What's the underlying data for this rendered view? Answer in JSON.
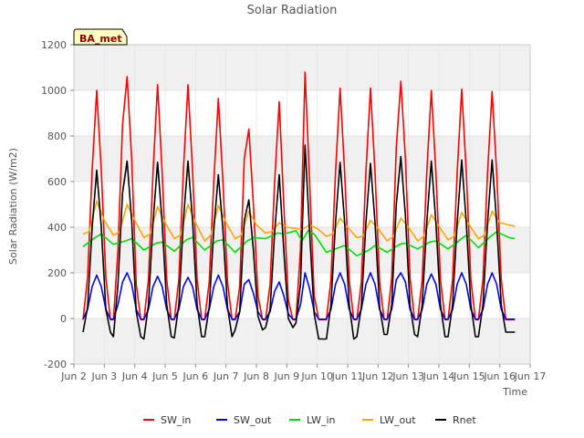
{
  "chart_data": {
    "type": "line",
    "title": "Solar Radiation",
    "xlabel": "Time",
    "ylabel": "Solar Radiation (W/m2)",
    "site_label": "BA_met",
    "xlim": [
      2,
      17
    ],
    "ylim": [
      -200,
      1200
    ],
    "x_ticks": [
      {
        "v": 2,
        "label": "Jun 2"
      },
      {
        "v": 3,
        "label": "Jun 3"
      },
      {
        "v": 4,
        "label": "Jun 4"
      },
      {
        "v": 5,
        "label": "Jun 5"
      },
      {
        "v": 6,
        "label": "Jun 6"
      },
      {
        "v": 7,
        "label": "Jun 7"
      },
      {
        "v": 8,
        "label": "Jun 8"
      },
      {
        "v": 9,
        "label": "Jun 9"
      },
      {
        "v": 10,
        "label": "Jun 10"
      },
      {
        "v": 11,
        "label": "Jun 11"
      },
      {
        "v": 12,
        "label": "Jun 12"
      },
      {
        "v": 13,
        "label": "Jun 13"
      },
      {
        "v": 14,
        "label": "Jun 14"
      },
      {
        "v": 15,
        "label": "Jun 15"
      },
      {
        "v": 16,
        "label": "Jun 16"
      },
      {
        "v": 17,
        "label": "Jun 17"
      }
    ],
    "y_ticks": [
      -200,
      0,
      200,
      400,
      600,
      800,
      1000,
      1200
    ],
    "grid": true,
    "background_bands": true,
    "legend_position": "bottom-center",
    "series": [
      {
        "name": "SW_in",
        "color": "#ff0000",
        "x": [
          2.3,
          2.45,
          2.6,
          2.75,
          2.9,
          3.05,
          3.2,
          3.3,
          3.45,
          3.6,
          3.75,
          3.9,
          4.05,
          4.2,
          4.3,
          4.45,
          4.6,
          4.75,
          4.9,
          5.05,
          5.2,
          5.3,
          5.45,
          5.6,
          5.75,
          5.9,
          6.05,
          6.2,
          6.3,
          6.45,
          6.6,
          6.75,
          6.9,
          7.05,
          7.2,
          7.3,
          7.45,
          7.6,
          7.75,
          7.9,
          8.05,
          8.2,
          8.3,
          8.45,
          8.6,
          8.75,
          8.9,
          9.05,
          9.2,
          9.3,
          9.45,
          9.6,
          9.75,
          9.9,
          10.05,
          10.2,
          10.3,
          10.45,
          10.6,
          10.75,
          10.9,
          11.05,
          11.2,
          11.3,
          11.45,
          11.6,
          11.75,
          11.9,
          12.05,
          12.2,
          12.3,
          12.45,
          12.6,
          12.75,
          12.9,
          13.05,
          13.2,
          13.3,
          13.45,
          13.6,
          13.75,
          13.9,
          14.05,
          14.2,
          14.3,
          14.45,
          14.6,
          14.75,
          14.9,
          15.05,
          15.2,
          15.3,
          15.45,
          15.6,
          15.75,
          15.9,
          16.05,
          16.2,
          16.3,
          16.5
        ],
        "y": [
          -5,
          180,
          650,
          1000,
          650,
          180,
          -5,
          -5,
          300,
          850,
          1060,
          700,
          150,
          -5,
          -5,
          170,
          640,
          1025,
          640,
          170,
          -5,
          -5,
          170,
          650,
          1025,
          650,
          170,
          -5,
          -5,
          160,
          600,
          965,
          600,
          160,
          -5,
          -5,
          140,
          700,
          830,
          500,
          100,
          -5,
          -5,
          150,
          600,
          950,
          500,
          80,
          -5,
          -5,
          300,
          1080,
          600,
          100,
          -5,
          -5,
          -5,
          170,
          640,
          1010,
          640,
          170,
          -5,
          -5,
          160,
          640,
          1010,
          640,
          160,
          -5,
          -5,
          180,
          750,
          1040,
          700,
          180,
          -5,
          -5,
          170,
          640,
          1000,
          640,
          170,
          -5,
          -5,
          170,
          640,
          1005,
          640,
          170,
          -5,
          -5,
          170,
          640,
          995,
          640,
          170,
          -5,
          -5,
          -5
        ]
      },
      {
        "name": "SW_out",
        "color": "#0000ff",
        "x": [
          2.3,
          2.45,
          2.6,
          2.75,
          2.9,
          3.05,
          3.2,
          3.3,
          3.45,
          3.6,
          3.75,
          3.9,
          4.05,
          4.2,
          4.3,
          4.45,
          4.6,
          4.75,
          4.9,
          5.05,
          5.2,
          5.3,
          5.45,
          5.6,
          5.75,
          5.9,
          6.05,
          6.2,
          6.3,
          6.45,
          6.6,
          6.75,
          6.9,
          7.05,
          7.2,
          7.3,
          7.45,
          7.6,
          7.75,
          7.9,
          8.05,
          8.2,
          8.3,
          8.45,
          8.6,
          8.75,
          8.9,
          9.05,
          9.2,
          9.3,
          9.45,
          9.6,
          9.75,
          9.9,
          10.05,
          10.2,
          10.3,
          10.45,
          10.6,
          10.75,
          10.9,
          11.05,
          11.2,
          11.3,
          11.45,
          11.6,
          11.75,
          11.9,
          12.05,
          12.2,
          12.3,
          12.45,
          12.6,
          12.75,
          12.9,
          13.05,
          13.2,
          13.3,
          13.45,
          13.6,
          13.75,
          13.9,
          14.05,
          14.2,
          14.3,
          14.45,
          14.6,
          14.75,
          14.9,
          15.05,
          15.2,
          15.3,
          15.45,
          15.6,
          15.75,
          15.9,
          16.05,
          16.2,
          16.3,
          16.5
        ],
        "y": [
          -3,
          40,
          140,
          190,
          140,
          40,
          -3,
          -3,
          60,
          160,
          200,
          150,
          40,
          -3,
          -3,
          40,
          140,
          185,
          140,
          40,
          -3,
          -3,
          40,
          140,
          180,
          140,
          40,
          -3,
          -3,
          40,
          140,
          190,
          140,
          40,
          -3,
          -3,
          30,
          150,
          170,
          110,
          30,
          -3,
          -3,
          30,
          120,
          160,
          100,
          20,
          -3,
          -3,
          60,
          200,
          130,
          30,
          -3,
          -3,
          -3,
          40,
          150,
          200,
          150,
          40,
          -3,
          -3,
          40,
          150,
          200,
          150,
          40,
          -3,
          -3,
          40,
          170,
          200,
          160,
          40,
          -3,
          -3,
          40,
          150,
          195,
          150,
          40,
          -3,
          -3,
          40,
          150,
          200,
          150,
          40,
          -3,
          -3,
          40,
          150,
          200,
          150,
          40,
          -3,
          -3,
          -3
        ]
      },
      {
        "name": "LW_in",
        "color": "#00dd00",
        "x": [
          2.3,
          2.7,
          2.9,
          3.3,
          3.7,
          3.9,
          4.3,
          4.7,
          4.9,
          5.3,
          5.7,
          5.9,
          6.3,
          6.7,
          6.9,
          7.3,
          7.7,
          7.9,
          8.3,
          8.7,
          8.9,
          9.3,
          9.5,
          9.7,
          9.9,
          10.3,
          10.7,
          10.9,
          11.3,
          11.7,
          11.9,
          12.3,
          12.7,
          12.9,
          13.3,
          13.7,
          13.9,
          14.3,
          14.7,
          14.9,
          15.3,
          15.7,
          15.9,
          16.3,
          16.5
        ],
        "y": [
          315,
          355,
          370,
          325,
          340,
          350,
          300,
          330,
          335,
          295,
          345,
          355,
          300,
          340,
          345,
          290,
          340,
          355,
          350,
          375,
          370,
          385,
          340,
          385,
          370,
          290,
          310,
          320,
          275,
          300,
          320,
          290,
          325,
          330,
          305,
          335,
          340,
          305,
          345,
          365,
          310,
          360,
          380,
          355,
          350
        ]
      },
      {
        "name": "LW_out",
        "color": "#ffa500",
        "x": [
          2.3,
          2.5,
          2.75,
          3.0,
          3.3,
          3.5,
          3.75,
          4.0,
          4.3,
          4.5,
          4.75,
          5.0,
          5.3,
          5.5,
          5.75,
          6.0,
          6.3,
          6.5,
          6.75,
          7.0,
          7.3,
          7.5,
          7.75,
          8.0,
          8.3,
          8.5,
          8.75,
          9.0,
          9.3,
          9.5,
          9.75,
          10.0,
          10.3,
          10.5,
          10.75,
          11.0,
          11.3,
          11.5,
          11.75,
          12.0,
          12.3,
          12.5,
          12.75,
          13.0,
          13.3,
          13.5,
          13.75,
          14.0,
          14.3,
          14.5,
          14.75,
          15.0,
          15.3,
          15.5,
          15.75,
          16.0,
          16.3,
          16.5
        ],
        "y": [
          370,
          380,
          515,
          430,
          365,
          380,
          500,
          430,
          355,
          370,
          490,
          420,
          350,
          365,
          500,
          420,
          340,
          365,
          495,
          420,
          350,
          365,
          470,
          410,
          375,
          380,
          420,
          400,
          395,
          390,
          410,
          395,
          360,
          370,
          440,
          400,
          355,
          360,
          430,
          395,
          340,
          360,
          440,
          400,
          340,
          360,
          455,
          405,
          345,
          360,
          465,
          410,
          350,
          365,
          470,
          420,
          410,
          405
        ]
      },
      {
        "name": "Rnet",
        "color": "#000000",
        "x": [
          2.3,
          2.45,
          2.6,
          2.75,
          2.9,
          3.05,
          3.2,
          3.3,
          3.45,
          3.6,
          3.75,
          3.9,
          4.05,
          4.2,
          4.3,
          4.45,
          4.6,
          4.75,
          4.9,
          5.05,
          5.2,
          5.3,
          5.45,
          5.6,
          5.75,
          5.9,
          6.05,
          6.2,
          6.3,
          6.45,
          6.6,
          6.75,
          6.9,
          7.05,
          7.2,
          7.3,
          7.45,
          7.6,
          7.75,
          7.9,
          8.05,
          8.2,
          8.3,
          8.45,
          8.6,
          8.75,
          8.9,
          9.05,
          9.2,
          9.3,
          9.45,
          9.6,
          9.75,
          9.9,
          10.05,
          10.2,
          10.3,
          10.45,
          10.6,
          10.75,
          10.9,
          11.05,
          11.2,
          11.3,
          11.45,
          11.6,
          11.75,
          11.9,
          12.05,
          12.2,
          12.3,
          12.45,
          12.6,
          12.75,
          12.9,
          13.05,
          13.2,
          13.3,
          13.45,
          13.6,
          13.75,
          13.9,
          14.05,
          14.2,
          14.3,
          14.45,
          14.6,
          14.75,
          14.9,
          15.05,
          15.2,
          15.3,
          15.45,
          15.6,
          15.75,
          15.9,
          16.05,
          16.2,
          16.3,
          16.5
        ],
        "y": [
          -60,
          50,
          400,
          650,
          400,
          40,
          -60,
          -80,
          150,
          550,
          690,
          430,
          30,
          -80,
          -90,
          60,
          420,
          685,
          420,
          60,
          -80,
          -85,
          60,
          430,
          690,
          430,
          60,
          -80,
          -80,
          50,
          390,
          630,
          390,
          50,
          -80,
          -50,
          30,
          430,
          520,
          300,
          10,
          -50,
          -40,
          40,
          380,
          630,
          300,
          0,
          -40,
          -20,
          150,
          760,
          380,
          20,
          -90,
          -90,
          -90,
          60,
          420,
          685,
          420,
          60,
          -90,
          -80,
          50,
          420,
          680,
          420,
          50,
          -70,
          -70,
          60,
          500,
          710,
          450,
          60,
          -70,
          -80,
          60,
          420,
          690,
          420,
          60,
          -80,
          -80,
          60,
          420,
          695,
          420,
          60,
          -80,
          -80,
          60,
          420,
          695,
          420,
          60,
          -60,
          -60,
          -60
        ]
      }
    ]
  }
}
